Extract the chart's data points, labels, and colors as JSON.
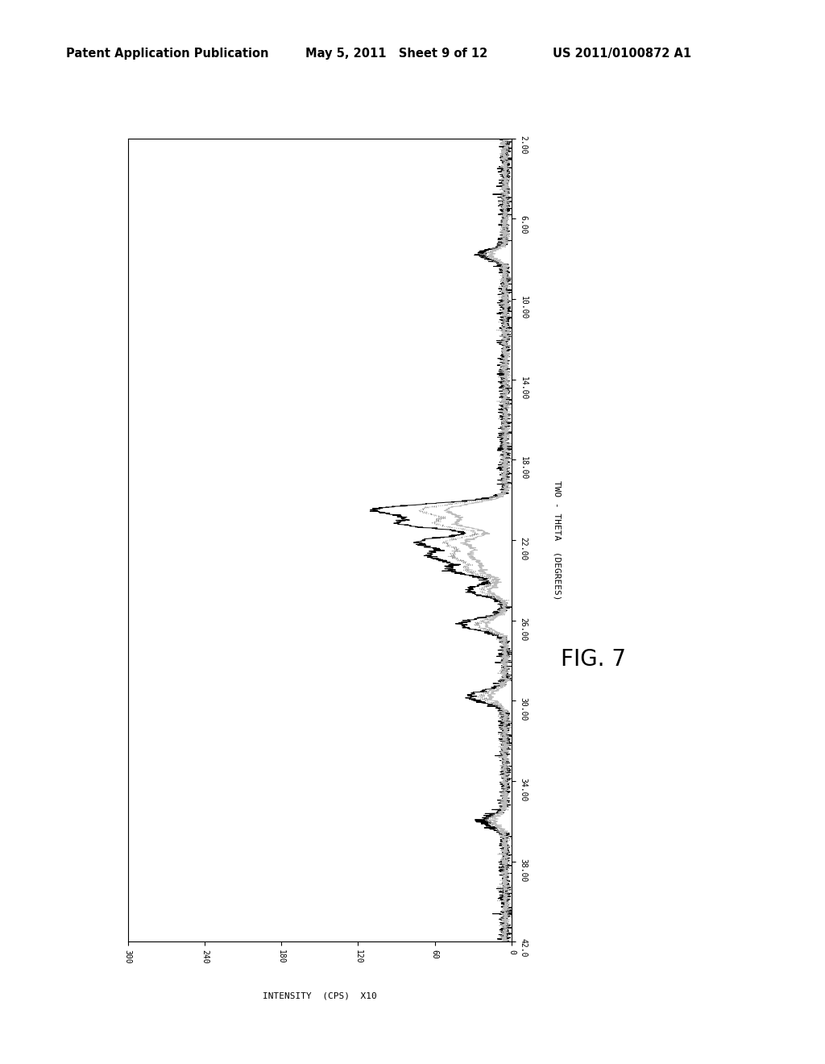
{
  "header_left": "Patent Application Publication",
  "header_mid": "May 5, 2011   Sheet 9 of 12",
  "header_right": "US 2011/0100872 A1",
  "fig_label": "FIG. 7",
  "xlabel": "TWO - THETA  (DEGREES)",
  "ylabel": "INTENSITY  (CPS)  X10",
  "theta_min": 2.0,
  "theta_max": 42.0,
  "intensity_min": 0,
  "intensity_max": 300,
  "theta_ticks": [
    2.0,
    6.0,
    10.0,
    14.0,
    18.0,
    22.0,
    26.0,
    30.0,
    34.0,
    38.0,
    42.0
  ],
  "intensity_ticks": [
    0,
    60,
    120,
    180,
    240,
    300
  ],
  "bg_color": "#ffffff",
  "line_color1": "#000000",
  "line_color2": "#999999",
  "line_color3": "#bbbbbb",
  "noise_seed": 42
}
